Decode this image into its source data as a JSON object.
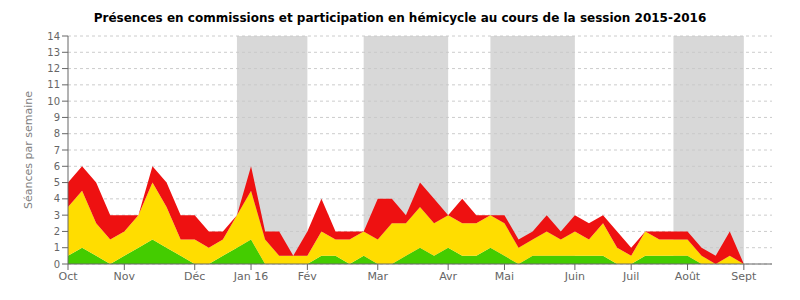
{
  "chart_data": {
    "type": "area",
    "stacked": true,
    "grid": true,
    "title": "Présences en commissions et participation en hémicycle au cours de la session 2015-2016",
    "ylabel": "Séances par semaine",
    "categories": [
      "Oct",
      null,
      null,
      null,
      "Nov",
      null,
      null,
      null,
      null,
      "Déc",
      null,
      null,
      null,
      "Jan 16",
      null,
      null,
      null,
      "Fév",
      null,
      null,
      null,
      null,
      "Mar",
      null,
      null,
      null,
      null,
      "Avr",
      null,
      null,
      null,
      "Mai",
      null,
      null,
      null,
      null,
      "Juin",
      null,
      null,
      null,
      "Juil",
      null,
      null,
      null,
      "Août",
      null,
      null,
      null,
      "Sept",
      null,
      null
    ],
    "series": [
      {
        "color": "#44cc00",
        "values": [
          0.5,
          1.0,
          0.5,
          0.0,
          0.5,
          1.0,
          1.5,
          1.0,
          0.5,
          0.0,
          0.0,
          0.5,
          1.0,
          1.5,
          0.0,
          0.0,
          0.0,
          0.0,
          0.5,
          0.5,
          0.0,
          0.5,
          0.0,
          0.0,
          0.5,
          1.0,
          0.5,
          1.0,
          0.5,
          0.5,
          1.0,
          0.5,
          0.0,
          0.5,
          0.5,
          0.5,
          0.5,
          0.5,
          0.5,
          0.0,
          0.0,
          0.5,
          0.5,
          0.5,
          0.5,
          0.0,
          0.0,
          0.0,
          0.0,
          0.0,
          0.0
        ]
      },
      {
        "color": "#ffdd00",
        "values": [
          3.0,
          3.5,
          2.0,
          1.5,
          1.5,
          2.0,
          3.5,
          2.5,
          1.0,
          1.5,
          1.0,
          1.0,
          2.0,
          3.0,
          1.5,
          0.5,
          0.5,
          0.5,
          1.5,
          1.0,
          1.5,
          1.5,
          1.5,
          2.5,
          2.0,
          2.5,
          2.0,
          2.0,
          2.0,
          2.0,
          2.0,
          2.0,
          1.0,
          1.0,
          1.5,
          1.0,
          1.5,
          1.0,
          2.0,
          1.0,
          0.5,
          1.5,
          1.0,
          1.0,
          1.0,
          0.5,
          0.0,
          0.5,
          0.0,
          0.0,
          0.0
        ]
      },
      {
        "color": "#ee1111",
        "values": [
          1.5,
          1.5,
          2.5,
          1.5,
          1.0,
          0.0,
          1.0,
          1.5,
          1.5,
          1.5,
          1.0,
          0.5,
          0.0,
          1.5,
          0.5,
          1.5,
          0.0,
          1.5,
          2.0,
          0.5,
          0.5,
          0.0,
          2.5,
          1.5,
          0.5,
          1.5,
          1.5,
          0.0,
          1.5,
          0.5,
          0.0,
          0.5,
          0.5,
          0.5,
          1.0,
          0.5,
          1.0,
          1.0,
          0.5,
          1.0,
          0.5,
          0.0,
          0.5,
          0.5,
          0.5,
          0.5,
          0.5,
          1.5,
          0.0,
          0.0,
          0.0
        ]
      }
    ],
    "ylim": [
      0,
      14
    ],
    "yticks": [
      0,
      1,
      2,
      3,
      4,
      5,
      6,
      7,
      8,
      9,
      10,
      11,
      12,
      13,
      14
    ],
    "shade_ranges": [
      [
        12,
        17
      ],
      [
        21,
        27
      ],
      [
        30,
        36
      ],
      [
        43,
        48
      ]
    ],
    "shade_color": "#c8c8c8"
  }
}
